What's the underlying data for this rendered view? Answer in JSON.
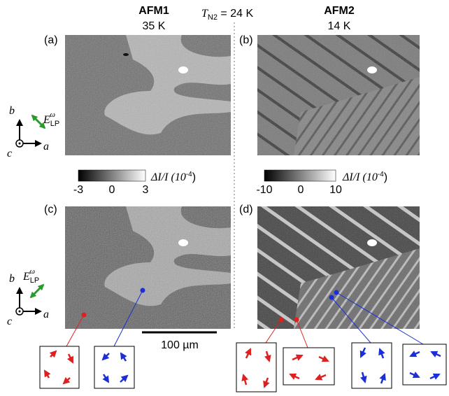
{
  "header": {
    "left_title": "AFM1",
    "left_temp": "35 K",
    "right_title": "AFM2",
    "right_temp": "14 K",
    "transition": {
      "symbol": "T",
      "subscript": "N2",
      "rest": " = 24 K"
    }
  },
  "panels": {
    "a": "(a)",
    "b": "(b)",
    "c": "(c)",
    "d": "(d)"
  },
  "colorbars": [
    {
      "ticks": [
        "-3",
        "0",
        "3"
      ]
    },
    {
      "ticks": [
        "-10",
        "0",
        "10"
      ]
    }
  ],
  "colorbar_label": {
    "text": "ΔI/I (10",
    "sup": "-4",
    "close": ")"
  },
  "axes": {
    "b": "b",
    "a": "a",
    "c": "c"
  },
  "field": {
    "symbol": "E",
    "subscript": "LP",
    "superscript": "ω"
  },
  "scale_bar": "100 µm"
}
